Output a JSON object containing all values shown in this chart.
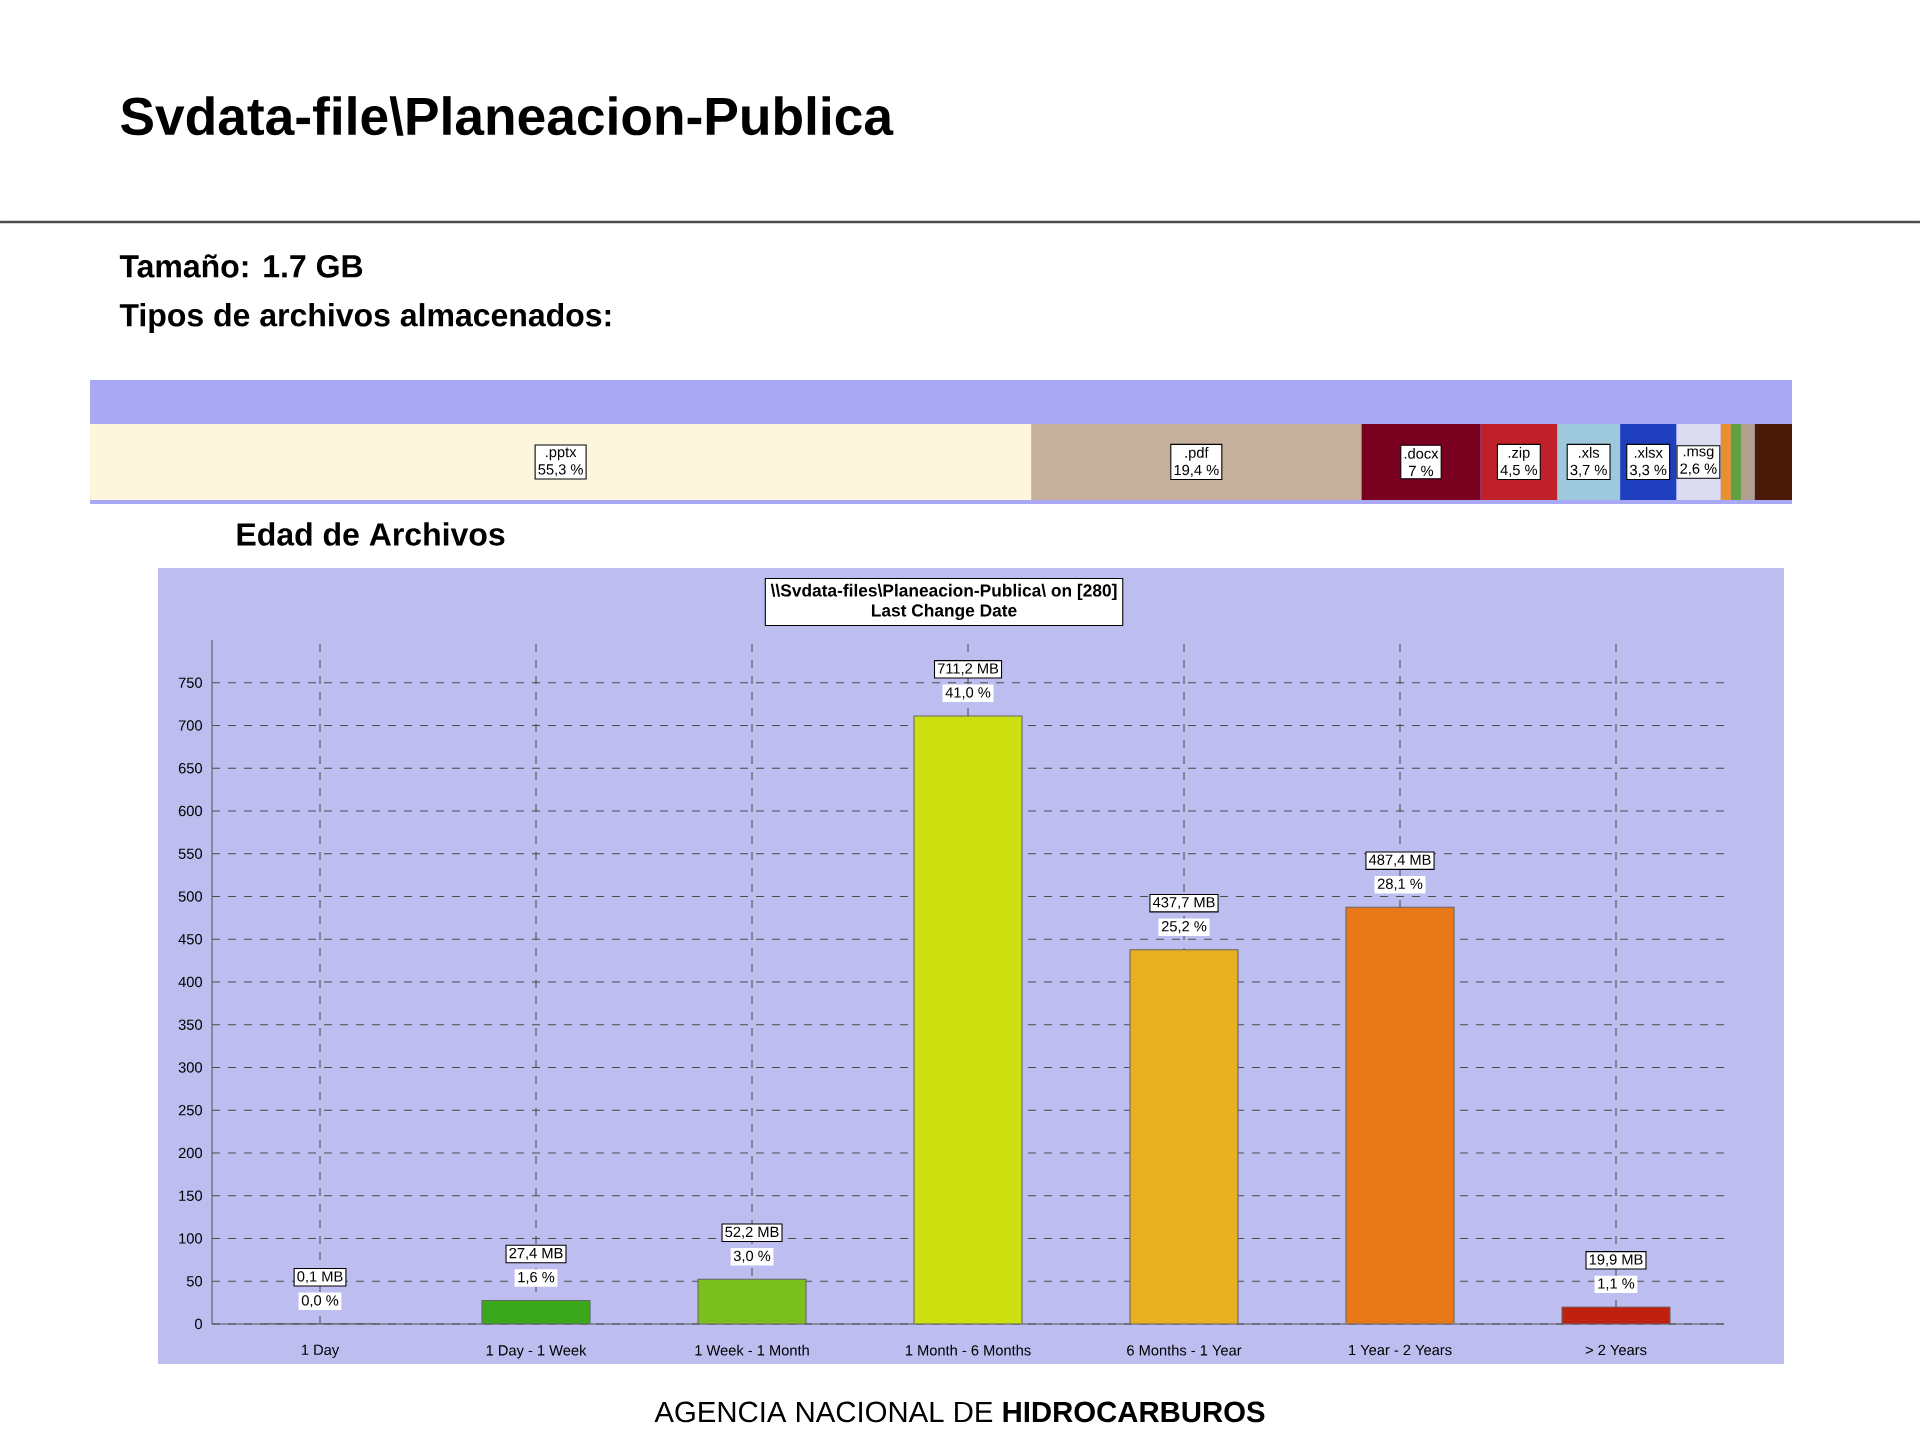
{
  "chart_data": [
    {
      "type": "bar",
      "title": "Svdata-file\\Planeacion-Publica",
      "annotations": [
        "Tamaño: 1.7 GB",
        "Tipos de archivos almacenados:"
      ],
      "orientation": "horizontal",
      "stacked": true,
      "categories": [
        null
      ],
      "series": [
        {
          "name": ".pptx",
          "color": "#fdf5dc",
          "values": [
            55.3
          ],
          "value_labels": [
            "55,3 %"
          ]
        },
        {
          "name": ".pdf",
          "color": "#c4b09b",
          "values": [
            19.4
          ],
          "value_labels": [
            "19,4 %"
          ]
        },
        {
          "name": ".docx",
          "color": "#7a0020",
          "values": [
            7
          ],
          "value_labels": [
            "7 %"
          ]
        },
        {
          "name": ".zip",
          "color": "#c0202a",
          "values": [
            4.5
          ],
          "value_labels": [
            "4,5 %"
          ]
        },
        {
          "name": ".xls",
          "color": "#9ec8dc",
          "values": [
            3.7
          ],
          "value_labels": [
            "3,7 %"
          ]
        },
        {
          "name": ".xlsx",
          "color": "#1f3fbf",
          "values": [
            3.3
          ],
          "value_labels": [
            "3,3 %"
          ]
        },
        {
          "name": ".msg",
          "color": "#dcdcf0",
          "values": [
            2.6
          ],
          "value_labels": [
            "2,6 %"
          ]
        },
        {
          "color": "#e89030",
          "values": [
            0.6
          ]
        },
        {
          "color": "#60a040",
          "values": [
            0.6
          ]
        },
        {
          "color": "#b0a090",
          "values": [
            0.8
          ]
        },
        {
          "color": "#4a1a08",
          "values": [
            2.2
          ]
        }
      ]
    },
    {
      "type": "bar",
      "title": "\\\\Svdata-files\\Planeacion-Publica\\  on  [280]",
      "subtitle": "Last Change Date",
      "categories": [
        "1 Day",
        "1 Day - 1 Week",
        "1 Week - 1 Month",
        "1 Month - 6 Months",
        "6 Months - 1 Year",
        "1 Year - 2 Years",
        "> 2 Years"
      ],
      "values": [
        0.1,
        27.4,
        52.2,
        711.2,
        437.7,
        487.4,
        19.9
      ],
      "colors": [
        "#1a9a1a",
        "#3aa81a",
        "#7cc020",
        "#cce010",
        "#e8b020",
        "#e87818",
        "#c02010"
      ],
      "value_labels": [
        "0,1 MB",
        "27,4 MB",
        "52,2 MB",
        "711,2 MB",
        "437,7 MB",
        "487,4 MB",
        "19,9 MB"
      ],
      "ylim": [
        0,
        800
      ],
      "yticks": [
        0,
        50,
        100,
        150,
        200,
        250,
        300,
        350,
        400,
        450,
        500,
        550,
        600,
        650,
        700,
        750
      ],
      "grid": true,
      "annotations": [
        "Edad de Archivos",
        "AGENCIA NACIONAL DE **HIDROCARBUROS**",
        {
          "text": "0,0 %",
          "x": "1 Day",
          "y": 0.1
        },
        {
          "text": "1,6 %",
          "x": "1 Day - 1 Week",
          "y": 27.4
        },
        {
          "text": "3,0 %",
          "x": "1 Week - 1 Month",
          "y": 52.2
        },
        {
          "text": "41,0 %",
          "x": "1 Month - 6 Months",
          "y": 711.2
        },
        {
          "text": "25,2 %",
          "x": "6 Months - 1 Year",
          "y": 437.7
        },
        {
          "text": "28,1 %",
          "x": "1 Year - 2 Years",
          "y": 487.4
        },
        {
          "text": "1,1 %",
          "x": "> 2 Years",
          "y": 19.9
        }
      ]
    }
  ]
}
